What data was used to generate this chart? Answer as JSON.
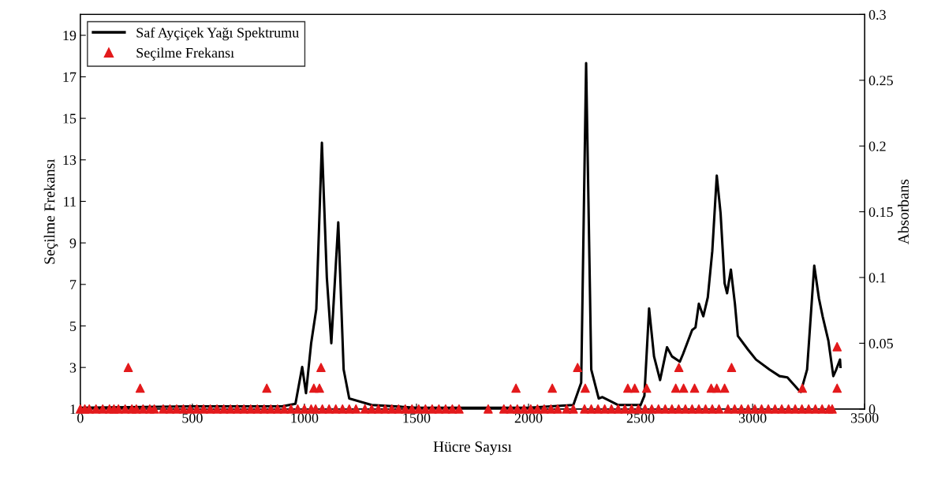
{
  "chart_data": {
    "type": "line",
    "xlabel": "Hücre Sayısı",
    "ylabel": "Seçilme Frekansı",
    "y2label": "Absorbans",
    "xlim": [
      0,
      3500
    ],
    "xticks": [
      0,
      500,
      1000,
      1500,
      2000,
      2500,
      3000,
      3500
    ],
    "ylim": [
      1,
      20
    ],
    "yticks": [
      1,
      3,
      5,
      7,
      9,
      11,
      13,
      15,
      17,
      19
    ],
    "y2lim": [
      0,
      0.3
    ],
    "y2ticks": [
      0,
      0.05,
      0.1,
      0.15,
      0.2,
      0.25,
      0.3
    ],
    "grid": false,
    "legend": "top left",
    "series": [
      {
        "name": "Saf Ayçiçek Yağı Spektrumu",
        "axis": "y2",
        "color": "#000000",
        "marker": "none",
        "line_style": "solid",
        "x": [
          0,
          500,
          900,
          960,
          990,
          1007,
          1030,
          1053,
          1078,
          1100,
          1120,
          1151,
          1175,
          1200,
          1300,
          1500,
          2000,
          2200,
          2235,
          2257,
          2280,
          2313,
          2330,
          2400,
          2500,
          2517,
          2538,
          2560,
          2587,
          2618,
          2640,
          2675,
          2690,
          2730,
          2745,
          2760,
          2780,
          2800,
          2820,
          2840,
          2857,
          2875,
          2886,
          2903,
          2921,
          2934,
          2980,
          3015,
          3075,
          3120,
          3155,
          3202,
          3215,
          3243,
          3275,
          3296,
          3313,
          3338,
          3360,
          3373,
          3390,
          3392
        ],
        "values": [
          0.001,
          0.002,
          0.002,
          0.004,
          0.032,
          0.012,
          0.05,
          0.076,
          0.2025,
          0.1,
          0.05,
          0.142,
          0.03,
          0.008,
          0.003,
          0.001,
          0.001,
          0.003,
          0.02,
          0.263,
          0.03,
          0.008,
          0.009,
          0.003,
          0.003,
          0.01,
          0.0765,
          0.04,
          0.022,
          0.047,
          0.04,
          0.036,
          0.042,
          0.06,
          0.062,
          0.08,
          0.0705,
          0.085,
          0.12,
          0.1775,
          0.149,
          0.0956,
          0.088,
          0.106,
          0.08,
          0.0556,
          0.045,
          0.0376,
          0.03,
          0.025,
          0.024,
          0.015,
          0.013,
          0.03,
          0.109,
          0.084,
          0.07,
          0.052,
          0.025,
          0.03,
          0.0376,
          0.032
        ]
      },
      {
        "name": "Seçilme Frekansı",
        "type": "scatter",
        "axis": "y",
        "color": "#e31a1c",
        "marker": "triangle",
        "x": [
          0,
          20,
          40,
          70,
          100,
          130,
          150,
          170,
          200,
          230,
          250,
          280,
          310,
          330,
          370,
          400,
          430,
          460,
          490,
          520,
          550,
          580,
          610,
          640,
          670,
          700,
          730,
          760,
          790,
          820,
          850,
          880,
          910,
          940,
          970,
          1000,
          1030,
          1050,
          1080,
          1110,
          1140,
          1170,
          1200,
          1230,
          1270,
          1300,
          1330,
          1360,
          1390,
          1420,
          1450,
          1480,
          1510,
          1540,
          1570,
          1600,
          1630,
          1660,
          1690,
          1820,
          1890,
          1920,
          1950,
          1980,
          2010,
          2040,
          2070,
          2100,
          2130,
          2170,
          2200,
          2250,
          2280,
          2310,
          2340,
          2370,
          2400,
          2430,
          2460,
          2490,
          2520,
          2550,
          2580,
          2610,
          2640,
          2670,
          2700,
          2730,
          2760,
          2790,
          2820,
          2850,
          2890,
          2920,
          2950,
          2980,
          3010,
          3040,
          3070,
          3100,
          3130,
          3160,
          3190,
          3220,
          3250,
          3280,
          3310,
          3340,
          3355,
          214,
          267,
          832,
          1042,
          1067,
          1074,
          1944,
          2106,
          2219,
          2253,
          2443,
          2474,
          2527,
          2657,
          2671,
          2692,
          2741,
          2815,
          2840,
          2875,
          2906,
          3222,
          3377,
          3377
        ],
        "values": [
          1,
          1,
          1,
          1,
          1,
          1,
          1,
          1,
          1,
          1,
          1,
          1,
          1,
          1,
          1,
          1,
          1,
          1,
          1,
          1,
          1,
          1,
          1,
          1,
          1,
          1,
          1,
          1,
          1,
          1,
          1,
          1,
          1,
          1,
          1,
          1,
          1,
          1,
          1,
          1,
          1,
          1,
          1,
          1,
          1,
          1,
          1,
          1,
          1,
          1,
          1,
          1,
          1,
          1,
          1,
          1,
          1,
          1,
          1,
          1,
          1,
          1,
          1,
          1,
          1,
          1,
          1,
          1,
          1,
          1,
          1,
          1,
          1,
          1,
          1,
          1,
          1,
          1,
          1,
          1,
          1,
          1,
          1,
          1,
          1,
          1,
          1,
          1,
          1,
          1,
          1,
          1,
          1,
          1,
          1,
          1,
          1,
          1,
          1,
          1,
          1,
          1,
          1,
          1,
          1,
          1,
          1,
          1,
          1,
          3,
          2,
          2,
          2,
          2,
          3,
          2,
          2,
          3,
          2,
          2,
          2,
          2,
          2,
          3,
          2,
          2,
          2,
          2,
          2,
          3,
          2,
          4,
          2
        ]
      }
    ]
  }
}
